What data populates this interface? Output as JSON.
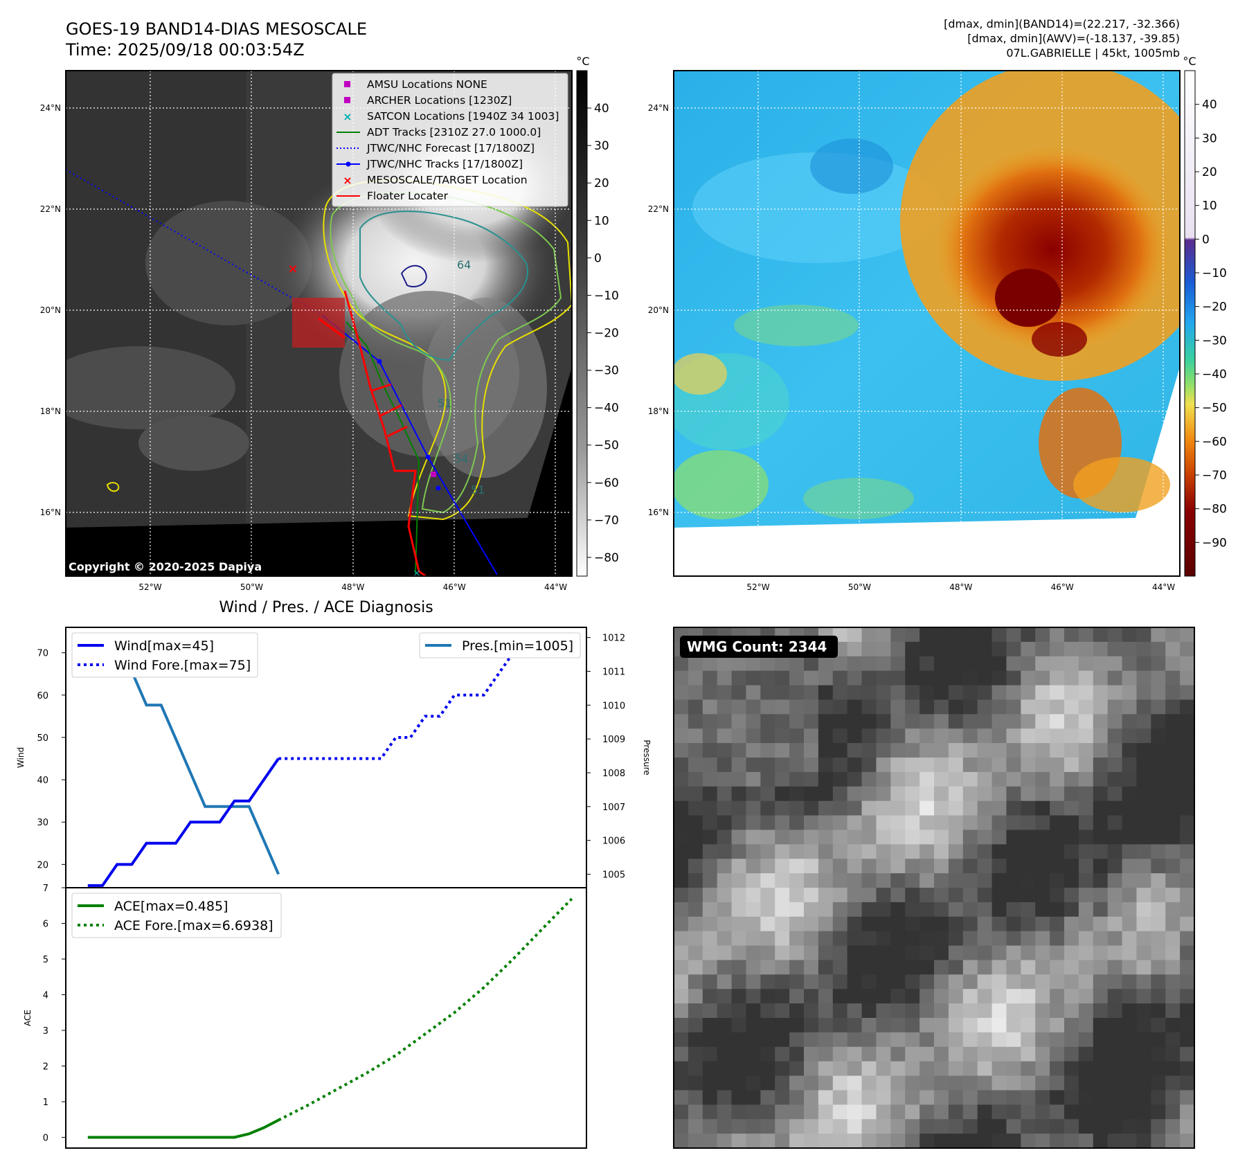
{
  "header": {
    "title_line1": "GOES-19 BAND14-DIAS MESOSCALE",
    "title_line2": "Time: 2025/09/18 00:03:54Z",
    "info_line1": "[dmax, dmin](BAND14)=(22.217, -32.366)",
    "info_line2": "[dmax, dmin](AWV)=(-18.137, -39.85)",
    "info_line3": "07L.GABRIELLE | 45kt, 1005mb"
  },
  "maps": {
    "lat_labels": [
      "24°N",
      "22°N",
      "20°N",
      "18°N",
      "16°N"
    ],
    "lat_values": [
      24,
      22,
      20,
      18,
      16
    ],
    "lon_labels": [
      "52°W",
      "50°W",
      "48°W",
      "46°W",
      "44°W"
    ],
    "lon_values": [
      -52,
      -50,
      -48,
      -46,
      -44
    ],
    "copyright": "Copyright © 2020-2025 Dapiya",
    "contour_labels": [
      "64",
      "54",
      "51",
      "51"
    ],
    "legend": [
      {
        "label": "AMSU Locations NONE",
        "color": "#c000c0",
        "marker": "square"
      },
      {
        "label": "ARCHER Locations [1230Z]",
        "color": "#c000c0",
        "marker": "square"
      },
      {
        "label": "SATCON Locations [1940Z 34 1003]",
        "color": "#00b0b0",
        "marker": "x"
      },
      {
        "label": "ADT Tracks [2310Z 27.0 1000.0]",
        "color": "#008000",
        "marker": "line"
      },
      {
        "label": "JTWC/NHC Forecast [17/1800Z]",
        "color": "#0000ff",
        "marker": "dotted"
      },
      {
        "label": "JTWC/NHC Tracks [17/1800Z]",
        "color": "#0000ff",
        "marker": "line-dot"
      },
      {
        "label": "MESOSCALE/TARGET Location",
        "color": "#ff0000",
        "marker": "x"
      },
      {
        "label": "Floater Locater",
        "color": "#ff0000",
        "marker": "line"
      }
    ]
  },
  "colorbar_left": {
    "unit": "°C",
    "ticks": [
      "40",
      "30",
      "20",
      "10",
      "0",
      "−10",
      "−20",
      "−30",
      "−40",
      "−50",
      "−60",
      "−70",
      "−80"
    ],
    "tick_values": [
      40,
      30,
      20,
      10,
      0,
      -10,
      -20,
      -30,
      -40,
      -50,
      -60,
      -70,
      -80
    ],
    "range": [
      -85,
      50
    ]
  },
  "colorbar_right": {
    "unit": "°C",
    "ticks": [
      "40",
      "30",
      "20",
      "10",
      "0",
      "−10",
      "−20",
      "−30",
      "−40",
      "−50",
      "−60",
      "−70",
      "−80",
      "−90"
    ],
    "tick_values": [
      40,
      30,
      20,
      10,
      0,
      -10,
      -20,
      -30,
      -40,
      -50,
      -60,
      -70,
      -80,
      -90
    ],
    "range": [
      -100,
      50
    ]
  },
  "chart_data": [
    {
      "type": "line",
      "title": "Wind / Pres. / ACE Diagnosis",
      "ylabel": "Wind",
      "ylabel_right": "Pressure",
      "yticks": [
        20,
        30,
        40,
        50,
        60,
        70
      ],
      "yticks_right": [
        1005,
        1006,
        1007,
        1008,
        1009,
        1010,
        1011,
        1012
      ],
      "legend_left": [
        "Wind[max=45]",
        "Wind Fore.[max=75]"
      ],
      "legend_right": [
        "Pres.[min=1005]"
      ],
      "series": [
        {
          "name": "Wind[max=45]",
          "x": [
            0,
            1,
            2,
            3,
            4,
            5,
            6,
            7,
            8,
            9,
            10,
            11,
            12,
            13
          ],
          "values": [
            15,
            15,
            20,
            20,
            25,
            25,
            25,
            30,
            30,
            30,
            35,
            35,
            40,
            45
          ],
          "style": "solid",
          "color": "#0000ee"
        },
        {
          "name": "Wind Fore.[max=75]",
          "x": [
            13,
            14,
            15,
            16,
            17,
            18,
            19,
            20,
            21,
            22,
            23,
            24,
            25,
            26,
            27,
            28,
            29,
            30,
            31,
            32,
            33
          ],
          "values": [
            45,
            45,
            45,
            45,
            45,
            45,
            45,
            45,
            50,
            50,
            55,
            55,
            60,
            60,
            60,
            65,
            70,
            70,
            70,
            70,
            75
          ],
          "style": "dotted",
          "color": "#0000ee"
        },
        {
          "name": "Pres.[min=1005]",
          "x": [
            0,
            1,
            2,
            3,
            4,
            5,
            6,
            7,
            8,
            9,
            10,
            11,
            12,
            13
          ],
          "values": [
            1012,
            1012,
            1011,
            1011,
            1010,
            1010,
            1009,
            1008,
            1007,
            1007,
            1007,
            1007,
            1006,
            1005
          ],
          "style": "solid",
          "color": "#1f77b4"
        }
      ],
      "xlim": [
        -1.5,
        34
      ],
      "ylim": [
        14.5,
        76
      ],
      "ylim_right": [
        1004.6,
        1012.3
      ]
    },
    {
      "type": "line",
      "ylabel": "ACE",
      "yticks": [
        0,
        1,
        2,
        3,
        4,
        5,
        6,
        7
      ],
      "legend": [
        "ACE[max=0.485]",
        "ACE Fore.[max=6.6938]"
      ],
      "series": [
        {
          "name": "ACE[max=0.485]",
          "x": [
            0,
            1,
            2,
            3,
            4,
            5,
            6,
            7,
            8,
            9,
            10,
            11,
            12,
            13
          ],
          "values": [
            0,
            0,
            0,
            0,
            0,
            0,
            0,
            0,
            0,
            0,
            0,
            0.1,
            0.27,
            0.485
          ],
          "style": "solid",
          "color": "#008000"
        },
        {
          "name": "ACE Fore.[max=6.6938]",
          "x": [
            13,
            15,
            17,
            19,
            21,
            23,
            25,
            27,
            29,
            31,
            33
          ],
          "values": [
            0.485,
            0.9,
            1.35,
            1.8,
            2.3,
            2.9,
            3.5,
            4.2,
            5.0,
            5.85,
            6.69
          ],
          "style": "dotted",
          "color": "#008000"
        }
      ],
      "xlim": [
        -1.5,
        34
      ],
      "ylim": [
        -0.3,
        7
      ]
    }
  ],
  "wmg": {
    "count_label": "WMG Count: 2344"
  }
}
